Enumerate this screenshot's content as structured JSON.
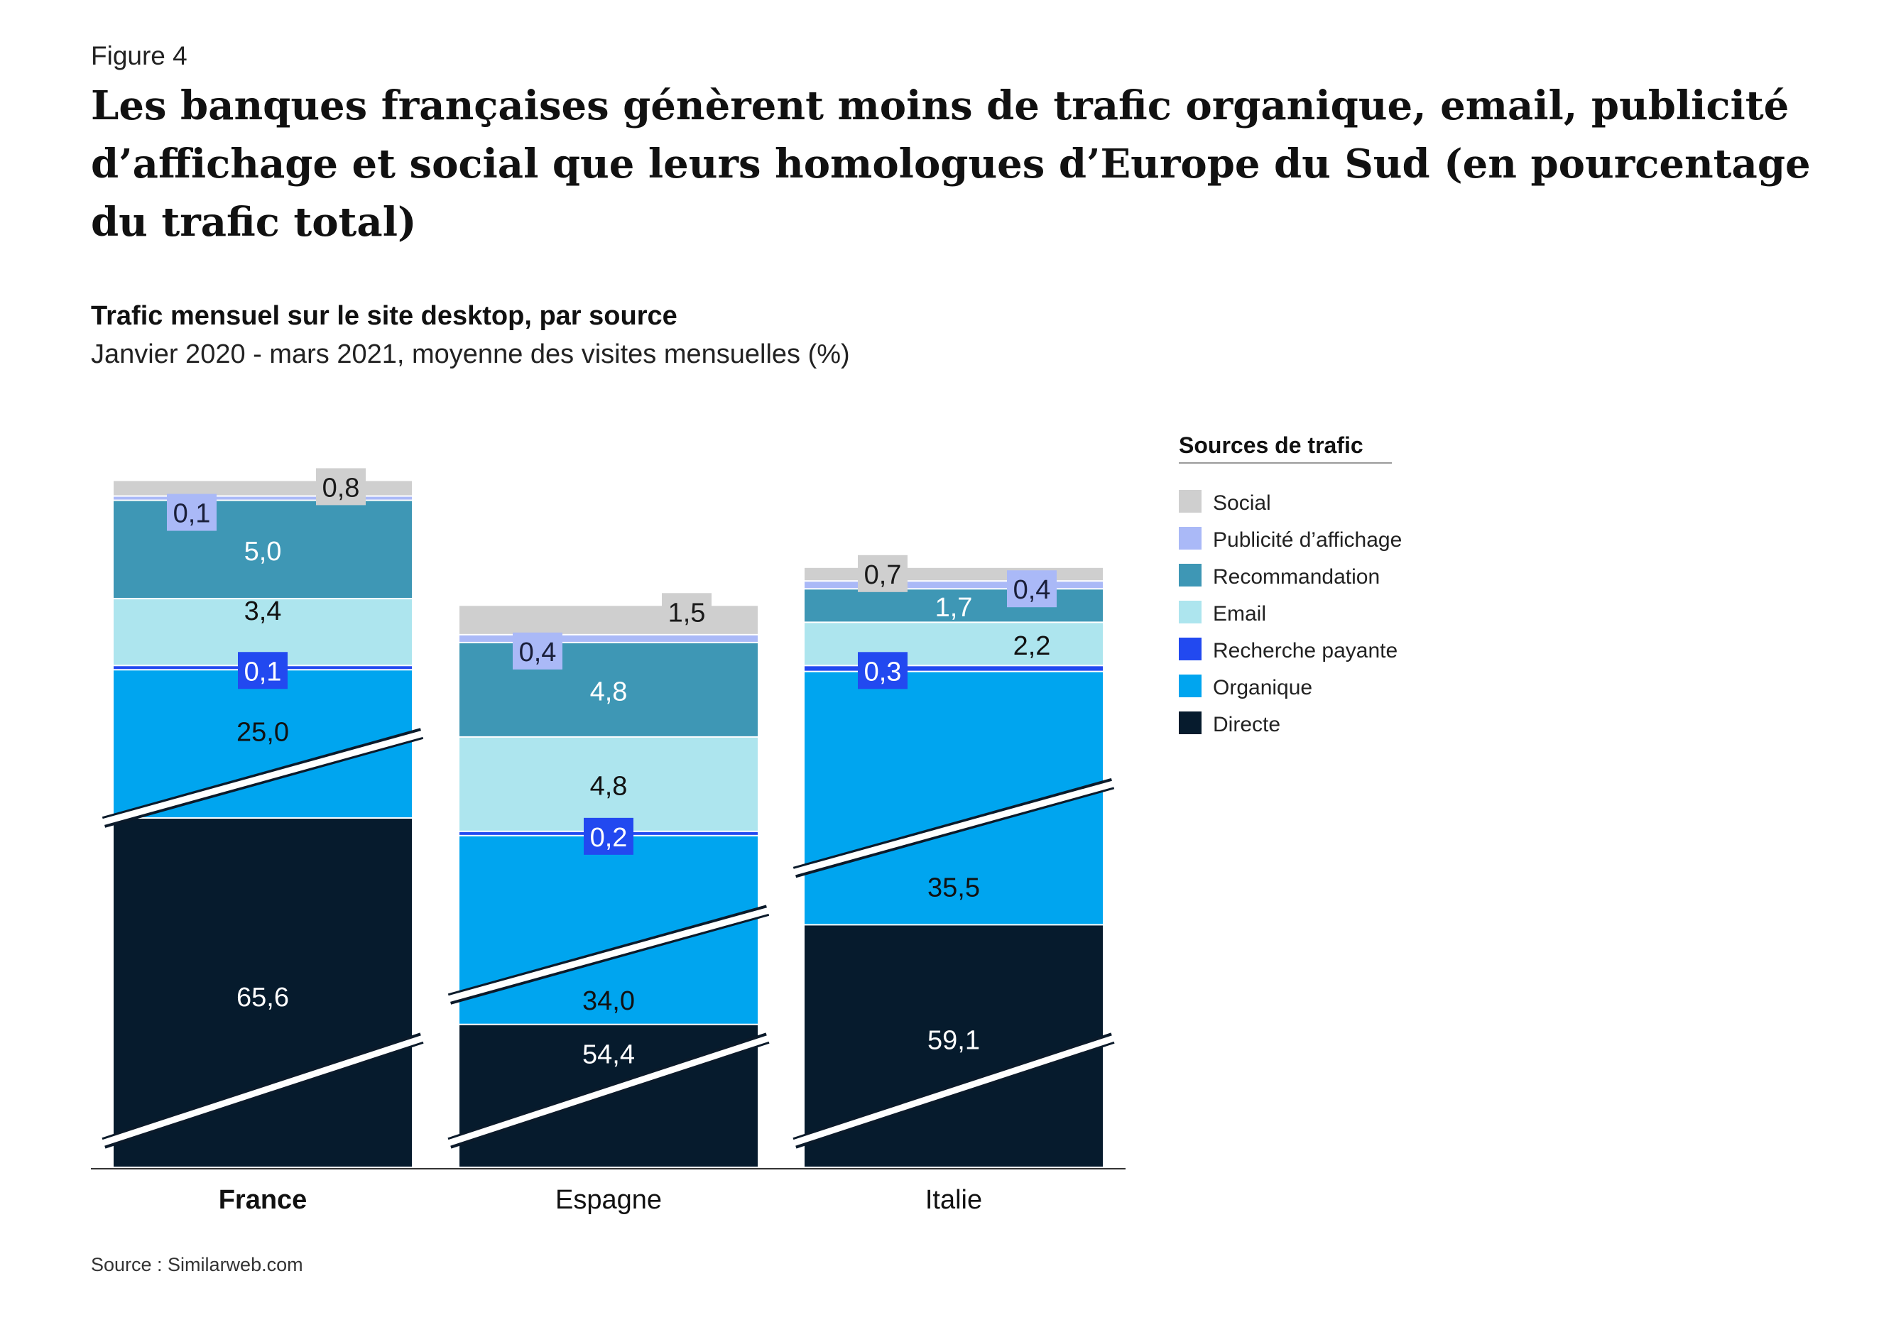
{
  "figure_label": "Figure 4",
  "title": "Les banques françaises génèrent moins de trafic organique, email, publicité d’affichage et social que leurs homologues d’Europe du Sud (en pourcentage du trafic total)",
  "subtitle": "Trafic mensuel sur le site desktop, par source",
  "subtitle2": "Janvier 2020 - mars 2021, moyenne des visites mensuelles (%)",
  "source": "Source : Similarweb.com",
  "colors": {
    "Social": "#cfcfcf",
    "Publicité d’affichage": "#aab9f7",
    "Recommandation": "#3e97b5",
    "Email": "#ade5ee",
    "Recherche payante": "#2249f0",
    "Organique": "#00a5ef",
    "Directe": "#061b2d"
  },
  "chart_data": {
    "type": "bar",
    "stacked": true,
    "broken_axis": true,
    "categories": [
      "France",
      "Espagne",
      "Italie"
    ],
    "highlight_category": "France",
    "legend_title": "Sources de trafic",
    "legend_position": "right",
    "series": [
      {
        "name": "Directe",
        "values": [
          65.6,
          54.4,
          59.1
        ],
        "labels": [
          "65,6",
          "54,4",
          "59,1"
        ]
      },
      {
        "name": "Organique",
        "values": [
          25.0,
          34.0,
          35.5
        ],
        "labels": [
          "25,0",
          "34,0",
          "35,5"
        ]
      },
      {
        "name": "Recherche payante",
        "values": [
          0.1,
          0.2,
          0.3
        ],
        "labels": [
          "0,1",
          "0,2",
          "0,3"
        ]
      },
      {
        "name": "Email",
        "values": [
          3.4,
          4.8,
          2.2
        ],
        "labels": [
          "3,4",
          "4,8",
          "2,2"
        ]
      },
      {
        "name": "Recommandation",
        "values": [
          5.0,
          4.8,
          1.7
        ],
        "labels": [
          "5,0",
          "4,8",
          "1,7"
        ]
      },
      {
        "name": "Publicité d’affichage",
        "values": [
          0.1,
          0.4,
          0.4
        ],
        "labels": [
          "0,1",
          "0,4",
          "0,4"
        ]
      },
      {
        "name": "Social",
        "values": [
          0.8,
          1.5,
          0.7
        ],
        "labels": [
          "0,8",
          "1,5",
          "0,7"
        ]
      }
    ]
  }
}
